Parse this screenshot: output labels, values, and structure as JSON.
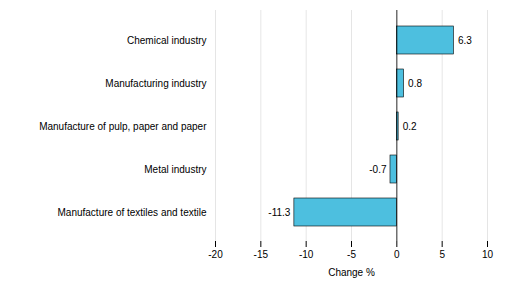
{
  "chart_data": {
    "type": "bar",
    "orientation": "horizontal",
    "categories": [
      "Chemical industry",
      "Manufacturing industry",
      "Manufacture of pulp, paper and paper",
      "Metal industry",
      "Manufacture of textiles and textile"
    ],
    "values": [
      6.3,
      0.8,
      0.2,
      -0.7,
      -11.3
    ],
    "color": "#4DBFDF",
    "xlabel": "Change %",
    "xlim": [
      -20,
      10
    ],
    "xticks": [
      -20,
      -15,
      -10,
      -5,
      0,
      5,
      10
    ],
    "grid": true,
    "data_labels": true
  }
}
